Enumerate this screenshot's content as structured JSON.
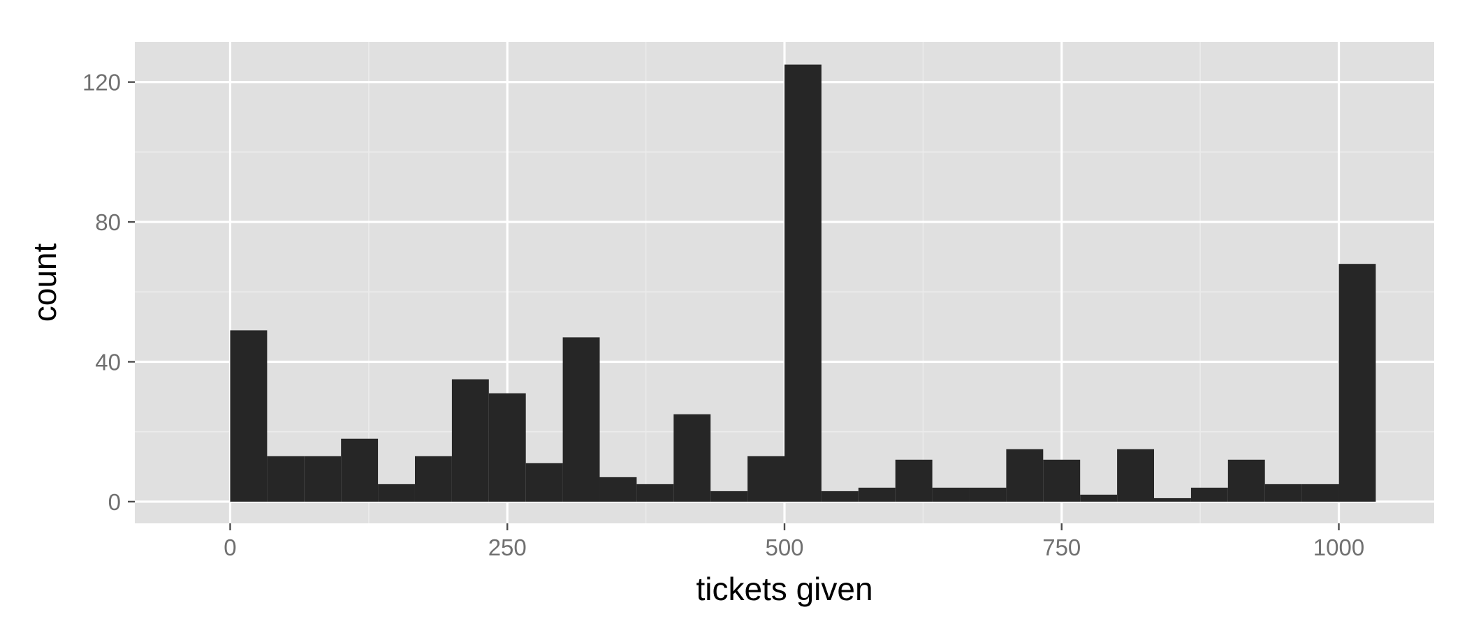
{
  "chart_data": {
    "type": "bar",
    "title": "",
    "xlabel": "tickets given",
    "ylabel": "count",
    "xlim": [
      -86,
      1086
    ],
    "ylim": [
      -6.2,
      131.5
    ],
    "x_ticks": [
      0,
      250,
      500,
      750,
      1000
    ],
    "x_tick_labels": [
      "0",
      "250",
      "500",
      "750",
      "1000"
    ],
    "x_minor_ticks": [
      125,
      375,
      625,
      875
    ],
    "y_ticks": [
      0,
      40,
      80,
      120
    ],
    "y_tick_labels": [
      "0",
      "40",
      "80",
      "120"
    ],
    "y_minor_ticks": [
      20,
      60,
      100
    ],
    "grid": true,
    "legend": "none",
    "bin_width": 33.33,
    "bin_starts": [
      0,
      33.33,
      66.67,
      100,
      133.33,
      166.67,
      200,
      233.33,
      266.67,
      300,
      333.33,
      366.67,
      400,
      433.33,
      466.67,
      500,
      533.33,
      566.67,
      600,
      633.33,
      666.67,
      700,
      733.33,
      766.67,
      800,
      833.33,
      866.67,
      900,
      933.33,
      966.67,
      1000
    ],
    "values": [
      49,
      13,
      13,
      18,
      5,
      13,
      35,
      31,
      11,
      47,
      7,
      5,
      25,
      3,
      13,
      125,
      3,
      4,
      12,
      4,
      4,
      15,
      12,
      2,
      15,
      1,
      4,
      12,
      5,
      5,
      68
    ],
    "colors": {
      "panel": "#e0e0e0",
      "grid_major": "#ffffff",
      "grid_minor": "#ebebeb",
      "bar": "#262626",
      "tick_text": "#707070",
      "tick_mark": "#4d4d4d",
      "title_text": "#000000"
    }
  }
}
